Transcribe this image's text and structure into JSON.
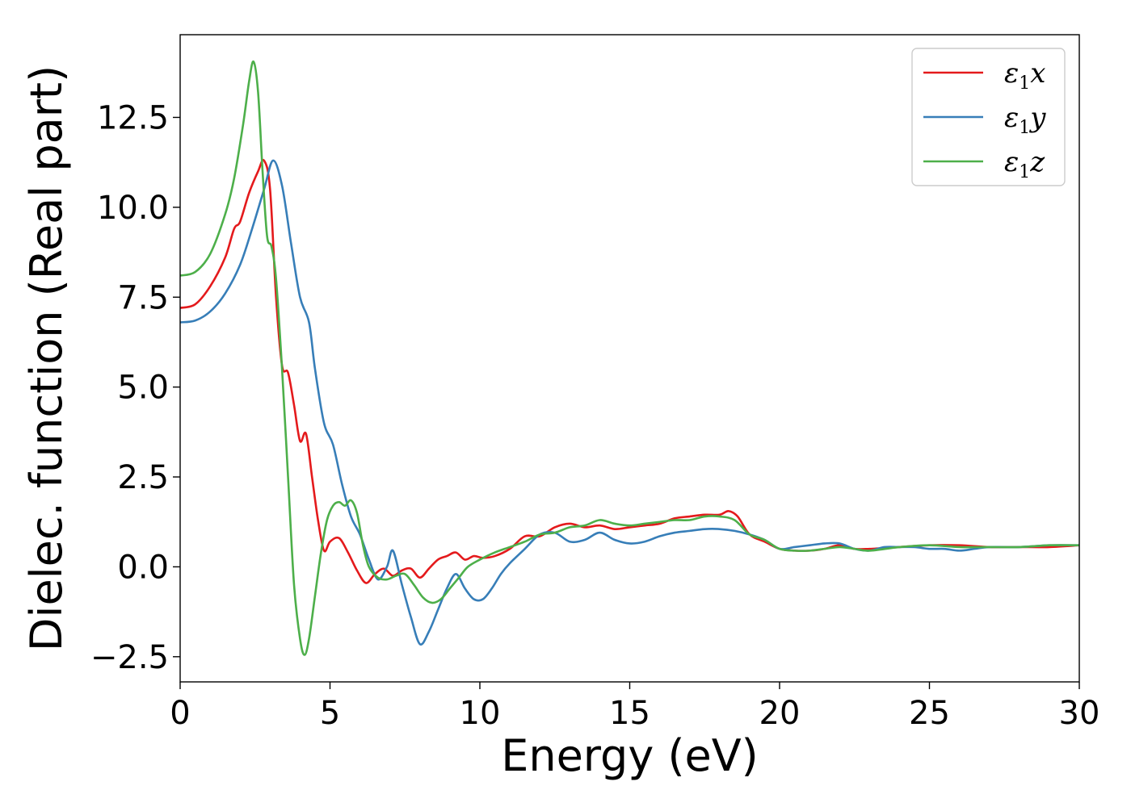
{
  "chart_data": {
    "type": "line",
    "title": "",
    "xlabel": "Energy (eV)",
    "ylabel": "Dielec. function (Real part)",
    "xlim": [
      0,
      30
    ],
    "ylim": [
      -3.2,
      14.8
    ],
    "grid": false,
    "legend_position": "top-right",
    "xticks": [
      0,
      5,
      10,
      15,
      20,
      25,
      30
    ],
    "xtick_labels": [
      "0",
      "5",
      "10",
      "15",
      "20",
      "25",
      "30"
    ],
    "yticks": [
      -2.5,
      0.0,
      2.5,
      5.0,
      7.5,
      10.0,
      12.5
    ],
    "ytick_labels": [
      "−2.5",
      "0.0",
      "2.5",
      "5.0",
      "7.5",
      "10.0",
      "12.5"
    ],
    "series": [
      {
        "name": "ε₁x",
        "legend_main": "ε",
        "legend_sub": "1",
        "legend_tail": "x",
        "color": "#e41a1c",
        "x": [
          0,
          0.5,
          1.0,
          1.5,
          1.8,
          2.0,
          2.3,
          2.6,
          2.8,
          3.0,
          3.2,
          3.4,
          3.6,
          3.8,
          4.0,
          4.2,
          4.4,
          4.6,
          4.8,
          5.0,
          5.3,
          5.6,
          5.9,
          6.2,
          6.5,
          6.8,
          7.1,
          7.4,
          7.7,
          8.0,
          8.3,
          8.6,
          8.9,
          9.2,
          9.5,
          9.8,
          10.1,
          10.5,
          11.0,
          11.5,
          12.0,
          12.5,
          13.0,
          13.5,
          14.0,
          14.5,
          15.0,
          15.5,
          16.0,
          16.5,
          17.0,
          17.5,
          18.0,
          18.3,
          18.6,
          19.0,
          19.5,
          20.0,
          20.5,
          21.0,
          21.5,
          22.0,
          22.5,
          23.0,
          24.0,
          25.0,
          26.0,
          27.0,
          28.0,
          29.0,
          30.0
        ],
        "y": [
          7.2,
          7.3,
          7.8,
          8.6,
          9.4,
          9.6,
          10.4,
          11.0,
          11.3,
          10.5,
          7.5,
          5.6,
          5.4,
          4.5,
          3.5,
          3.7,
          2.5,
          1.3,
          0.45,
          0.7,
          0.8,
          0.4,
          -0.1,
          -0.45,
          -0.2,
          -0.05,
          -0.25,
          -0.1,
          -0.05,
          -0.3,
          -0.05,
          0.2,
          0.3,
          0.4,
          0.2,
          0.3,
          0.25,
          0.3,
          0.5,
          0.85,
          0.85,
          1.1,
          1.2,
          1.1,
          1.15,
          1.05,
          1.1,
          1.15,
          1.2,
          1.35,
          1.4,
          1.45,
          1.45,
          1.55,
          1.4,
          0.9,
          0.7,
          0.5,
          0.45,
          0.45,
          0.5,
          0.6,
          0.5,
          0.5,
          0.55,
          0.6,
          0.6,
          0.55,
          0.55,
          0.55,
          0.6
        ]
      },
      {
        "name": "ε₁y",
        "legend_main": "ε",
        "legend_sub": "1",
        "legend_tail": "y",
        "color": "#377eb8",
        "x": [
          0,
          0.5,
          1.0,
          1.5,
          2.0,
          2.4,
          2.8,
          3.1,
          3.4,
          3.7,
          4.0,
          4.3,
          4.5,
          4.8,
          5.1,
          5.4,
          5.7,
          6.0,
          6.3,
          6.6,
          6.9,
          7.1,
          7.4,
          7.7,
          8.0,
          8.3,
          8.6,
          8.9,
          9.2,
          9.5,
          9.8,
          10.1,
          10.4,
          10.7,
          11.0,
          11.5,
          12.0,
          12.5,
          13.0,
          13.5,
          14.0,
          14.5,
          15.0,
          15.5,
          16.0,
          16.5,
          17.0,
          17.5,
          18.0,
          18.5,
          19.0,
          19.5,
          20.0,
          20.5,
          21.0,
          21.5,
          22.0,
          22.5,
          23.0,
          23.5,
          24.0,
          24.5,
          25.0,
          25.5,
          26.0,
          26.5,
          27.0,
          28.0,
          29.0,
          30.0
        ],
        "y": [
          6.8,
          6.85,
          7.1,
          7.6,
          8.4,
          9.4,
          10.5,
          11.3,
          10.6,
          9.0,
          7.5,
          6.8,
          5.5,
          4.0,
          3.4,
          2.3,
          1.4,
          0.9,
          0.2,
          -0.35,
          0.0,
          0.45,
          -0.5,
          -1.4,
          -2.15,
          -1.8,
          -1.2,
          -0.6,
          -0.2,
          -0.6,
          -0.9,
          -0.9,
          -0.6,
          -0.2,
          0.1,
          0.5,
          0.9,
          0.95,
          0.7,
          0.75,
          0.95,
          0.75,
          0.65,
          0.7,
          0.85,
          0.95,
          1.0,
          1.05,
          1.05,
          1.0,
          0.9,
          0.75,
          0.5,
          0.55,
          0.6,
          0.65,
          0.65,
          0.5,
          0.45,
          0.55,
          0.55,
          0.55,
          0.5,
          0.5,
          0.45,
          0.5,
          0.55,
          0.55,
          0.6,
          0.6
        ]
      },
      {
        "name": "ε₁z",
        "legend_main": "ε",
        "legend_sub": "1",
        "legend_tail": "z",
        "color": "#4daf4a",
        "x": [
          0,
          0.5,
          1.0,
          1.5,
          1.8,
          2.1,
          2.3,
          2.45,
          2.6,
          2.75,
          2.9,
          3.05,
          3.2,
          3.4,
          3.6,
          3.8,
          4.0,
          4.15,
          4.3,
          4.5,
          4.7,
          4.9,
          5.1,
          5.3,
          5.5,
          5.7,
          5.9,
          6.1,
          6.3,
          6.6,
          6.9,
          7.2,
          7.5,
          7.8,
          8.1,
          8.4,
          8.7,
          9.0,
          9.3,
          9.6,
          10.0,
          10.5,
          11.0,
          11.5,
          12.0,
          12.5,
          13.0,
          13.5,
          14.0,
          14.5,
          15.0,
          15.5,
          16.0,
          16.5,
          17.0,
          17.5,
          18.0,
          18.5,
          19.0,
          19.5,
          20.0,
          20.5,
          21.0,
          21.5,
          22.0,
          22.5,
          23.0,
          24.0,
          25.0,
          26.0,
          27.0,
          28.0,
          29.0,
          30.0
        ],
        "y": [
          8.1,
          8.2,
          8.7,
          9.8,
          10.8,
          12.3,
          13.5,
          14.05,
          13.2,
          11.0,
          9.2,
          8.9,
          8.0,
          5.5,
          2.5,
          -0.5,
          -2.0,
          -2.45,
          -2.0,
          -0.8,
          0.4,
          1.3,
          1.7,
          1.8,
          1.7,
          1.85,
          1.5,
          0.6,
          0.0,
          -0.3,
          -0.35,
          -0.25,
          -0.2,
          -0.5,
          -0.85,
          -1.0,
          -0.9,
          -0.6,
          -0.3,
          0.0,
          0.2,
          0.4,
          0.55,
          0.7,
          0.9,
          0.95,
          1.1,
          1.15,
          1.3,
          1.2,
          1.15,
          1.2,
          1.25,
          1.3,
          1.3,
          1.4,
          1.4,
          1.3,
          0.9,
          0.75,
          0.5,
          0.45,
          0.45,
          0.5,
          0.55,
          0.5,
          0.45,
          0.55,
          0.6,
          0.55,
          0.55,
          0.55,
          0.6,
          0.6
        ]
      }
    ]
  }
}
